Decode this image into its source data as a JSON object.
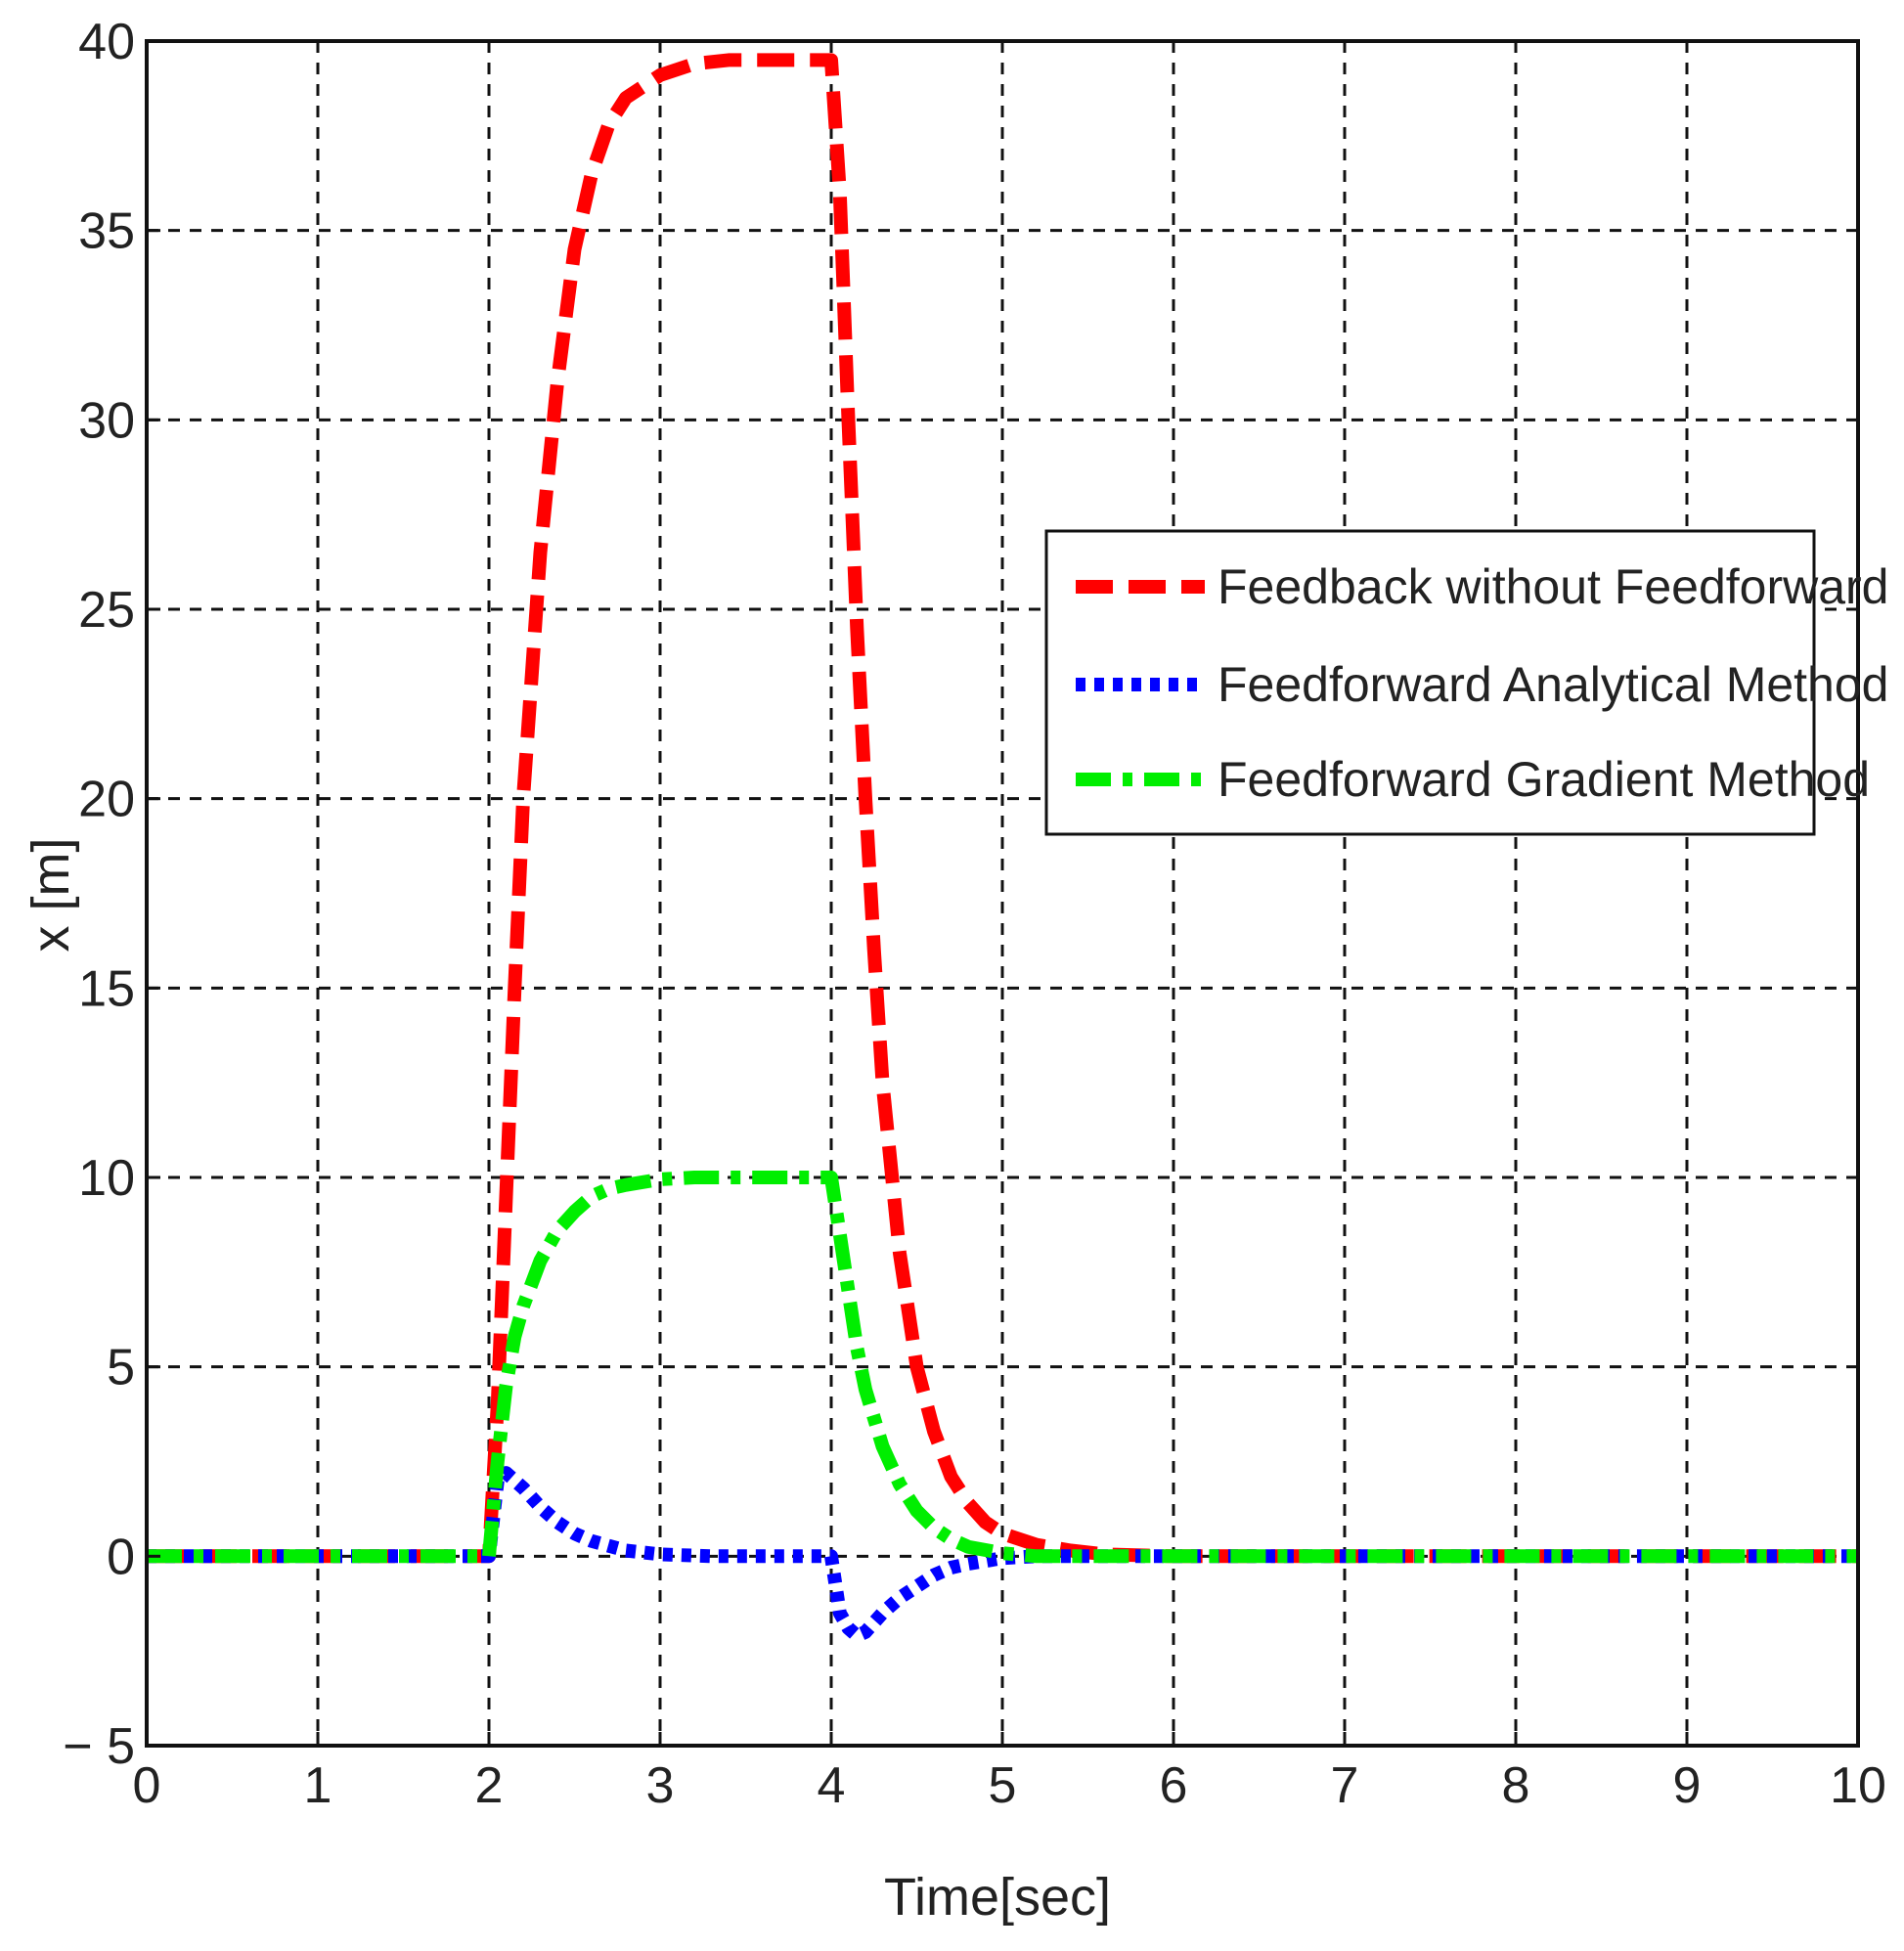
{
  "chart_data": {
    "type": "line",
    "title": "",
    "xlabel": "Time[sec]",
    "ylabel": "x [m]",
    "xlim": [
      0,
      10
    ],
    "ylim": [
      -5,
      40
    ],
    "xticks": [
      0,
      1,
      2,
      3,
      4,
      5,
      6,
      7,
      8,
      9,
      10
    ],
    "yticks": [
      -5,
      0,
      5,
      10,
      15,
      20,
      25,
      30,
      35,
      40
    ],
    "xtick_labels": [
      "0",
      "1",
      "2",
      "3",
      "4",
      "5",
      "6",
      "7",
      "8",
      "9",
      "10"
    ],
    "ytick_labels": [
      "− 5",
      "0",
      "5",
      "10",
      "15",
      "20",
      "25",
      "30",
      "35",
      "40"
    ],
    "grid": true,
    "legend_position": "center-right",
    "series": [
      {
        "name": "Feedback without Feedforward",
        "color": "#ff0000",
        "style": "dashed",
        "x": [
          0,
          1,
          2,
          2.05,
          2.1,
          2.15,
          2.2,
          2.3,
          2.4,
          2.5,
          2.6,
          2.7,
          2.8,
          3.0,
          3.2,
          3.4,
          3.6,
          3.8,
          4.0,
          4.05,
          4.1,
          4.15,
          4.2,
          4.25,
          4.3,
          4.4,
          4.5,
          4.6,
          4.7,
          4.8,
          4.9,
          5.0,
          5.2,
          5.4,
          5.6,
          6.0,
          7,
          8,
          9,
          10
        ],
        "y": [
          0,
          0,
          0,
          4.0,
          9.5,
          15.0,
          20.0,
          26.5,
          31.0,
          34.5,
          36.5,
          37.8,
          38.5,
          39.1,
          39.4,
          39.5,
          39.5,
          39.5,
          39.5,
          36.0,
          30.0,
          24.5,
          20.0,
          16.0,
          12.5,
          8.0,
          5.0,
          3.3,
          2.1,
          1.4,
          0.9,
          0.6,
          0.3,
          0.15,
          0.05,
          0,
          0,
          0,
          0,
          0
        ]
      },
      {
        "name": "Feedforward Analytical Method",
        "color": "#0000ff",
        "style": "dotted",
        "x": [
          0,
          1,
          2,
          2.05,
          2.1,
          2.2,
          2.3,
          2.4,
          2.5,
          2.6,
          2.8,
          3.0,
          3.3,
          3.6,
          4.0,
          4.05,
          4.1,
          4.15,
          4.2,
          4.3,
          4.4,
          4.5,
          4.6,
          4.7,
          4.8,
          5.0,
          5.2,
          6,
          7,
          8,
          9,
          10
        ],
        "y": [
          0,
          0,
          0,
          2.0,
          2.2,
          1.8,
          1.3,
          0.9,
          0.6,
          0.4,
          0.15,
          0.05,
          0,
          0,
          0,
          -1.5,
          -1.9,
          -2.1,
          -2.0,
          -1.5,
          -1.1,
          -0.8,
          -0.5,
          -0.3,
          -0.2,
          -0.05,
          0,
          0,
          0,
          0,
          0,
          0
        ]
      },
      {
        "name": "Feedforward Gradient Method",
        "color": "#00ee00",
        "style": "dashdot",
        "x": [
          0,
          1,
          2,
          2.05,
          2.1,
          2.15,
          2.2,
          2.3,
          2.4,
          2.5,
          2.6,
          2.7,
          2.8,
          3.0,
          3.2,
          3.4,
          3.6,
          3.8,
          4.0,
          4.05,
          4.1,
          4.15,
          4.2,
          4.3,
          4.4,
          4.5,
          4.6,
          4.7,
          4.8,
          5.0,
          5.2,
          6,
          7,
          8,
          9,
          10
        ],
        "y": [
          0,
          0,
          0,
          2.5,
          4.5,
          5.8,
          6.6,
          7.8,
          8.6,
          9.1,
          9.5,
          9.7,
          9.8,
          9.95,
          10.0,
          10.0,
          10.0,
          10.0,
          10.0,
          8.5,
          7.0,
          5.5,
          4.4,
          2.9,
          1.9,
          1.2,
          0.75,
          0.45,
          0.25,
          0.08,
          0,
          0,
          0,
          0,
          0,
          0
        ]
      }
    ]
  }
}
